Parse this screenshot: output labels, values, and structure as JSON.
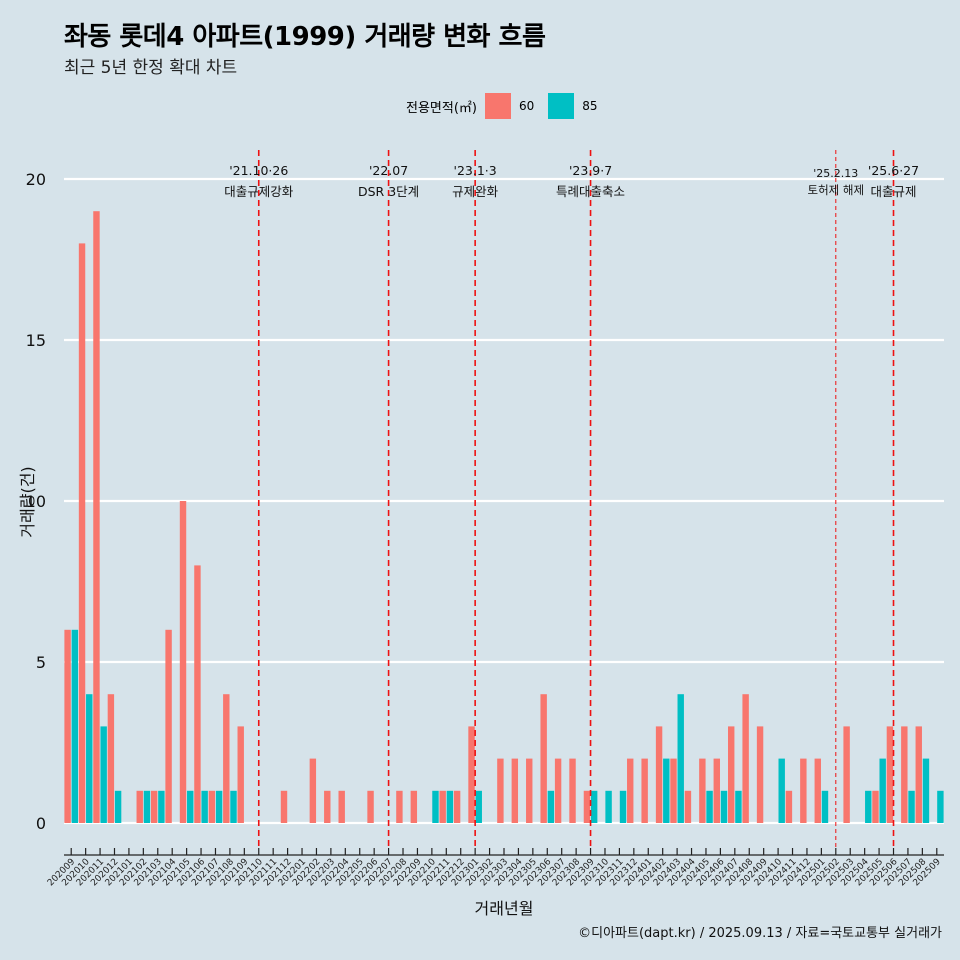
{
  "title": "좌동 롯데4 아파트(1999) 거래량 변화 흐름",
  "subtitle": "최근 5년 한정 확대 차트",
  "legend": {
    "title": "전용면적(㎡)",
    "items": [
      {
        "label": "60",
        "color": "#F8766D"
      },
      {
        "label": "85",
        "color": "#00BFC4"
      }
    ]
  },
  "caption": "©디아파트(dapt.kr) / 2025.09.13 / 자료=국토교통부 실거래가",
  "chart_data": {
    "type": "bar",
    "xlabel": "거래년월",
    "ylabel": "거래량(건)",
    "ylim": [
      0,
      20
    ],
    "yticks": [
      0,
      5,
      10,
      15,
      20
    ],
    "grid": "horizontal",
    "legend_position": "top",
    "categories": [
      "202009",
      "202010",
      "202011",
      "202012",
      "202101",
      "202102",
      "202103",
      "202104",
      "202105",
      "202106",
      "202107",
      "202108",
      "202109",
      "202110",
      "202111",
      "202112",
      "202201",
      "202202",
      "202203",
      "202204",
      "202205",
      "202206",
      "202207",
      "202208",
      "202209",
      "202210",
      "202211",
      "202212",
      "202301",
      "202302",
      "202303",
      "202304",
      "202305",
      "202306",
      "202307",
      "202308",
      "202309",
      "202310",
      "202311",
      "202312",
      "202401",
      "202402",
      "202403",
      "202404",
      "202405",
      "202406",
      "202407",
      "202408",
      "202409",
      "202410",
      "202411",
      "202412",
      "202501",
      "202502",
      "202503",
      "202504",
      "202505",
      "202506",
      "202507",
      "202508",
      "202509"
    ],
    "series": [
      {
        "name": "60",
        "color": "#F8766D",
        "values": [
          6,
          18,
          19,
          4,
          0,
          1,
          1,
          6,
          10,
          8,
          1,
          4,
          3,
          0,
          0,
          1,
          0,
          2,
          1,
          1,
          0,
          1,
          0,
          1,
          1,
          0,
          1,
          1,
          3,
          0,
          2,
          2,
          2,
          4,
          2,
          2,
          1,
          0,
          0,
          2,
          2,
          3,
          2,
          1,
          2,
          2,
          3,
          4,
          3,
          0,
          1,
          2,
          2,
          0,
          3,
          0,
          1,
          3,
          3,
          3,
          0
        ]
      },
      {
        "name": "85",
        "color": "#00BFC4",
        "values": [
          6,
          4,
          3,
          1,
          0,
          1,
          1,
          0,
          1,
          1,
          1,
          1,
          0,
          0,
          0,
          0,
          0,
          0,
          0,
          0,
          0,
          0,
          0,
          0,
          0,
          1,
          1,
          0,
          1,
          0,
          0,
          0,
          0,
          1,
          0,
          0,
          1,
          1,
          1,
          0,
          0,
          2,
          4,
          0,
          1,
          1,
          1,
          0,
          0,
          2,
          0,
          0,
          1,
          0,
          0,
          1,
          2,
          0,
          1,
          2,
          1
        ]
      }
    ],
    "annotations": [
      {
        "category": "202110",
        "date": "'21.10·26",
        "label": "대출규제강화",
        "style": "major"
      },
      {
        "category": "202207",
        "date": "'22.07",
        "label": "DSR 3단계",
        "style": "major"
      },
      {
        "category": "202301",
        "date": "'23.1·3",
        "label": "규제완화",
        "style": "major"
      },
      {
        "category": "202309",
        "date": "'23.9·7",
        "label": "특례대출축소",
        "style": "major"
      },
      {
        "category": "202502",
        "date": "'25.2.13",
        "label": "토허제 해제",
        "style": "minor"
      },
      {
        "category": "202506",
        "date": "'25.6·27",
        "label": "대출규제",
        "style": "major"
      }
    ]
  }
}
